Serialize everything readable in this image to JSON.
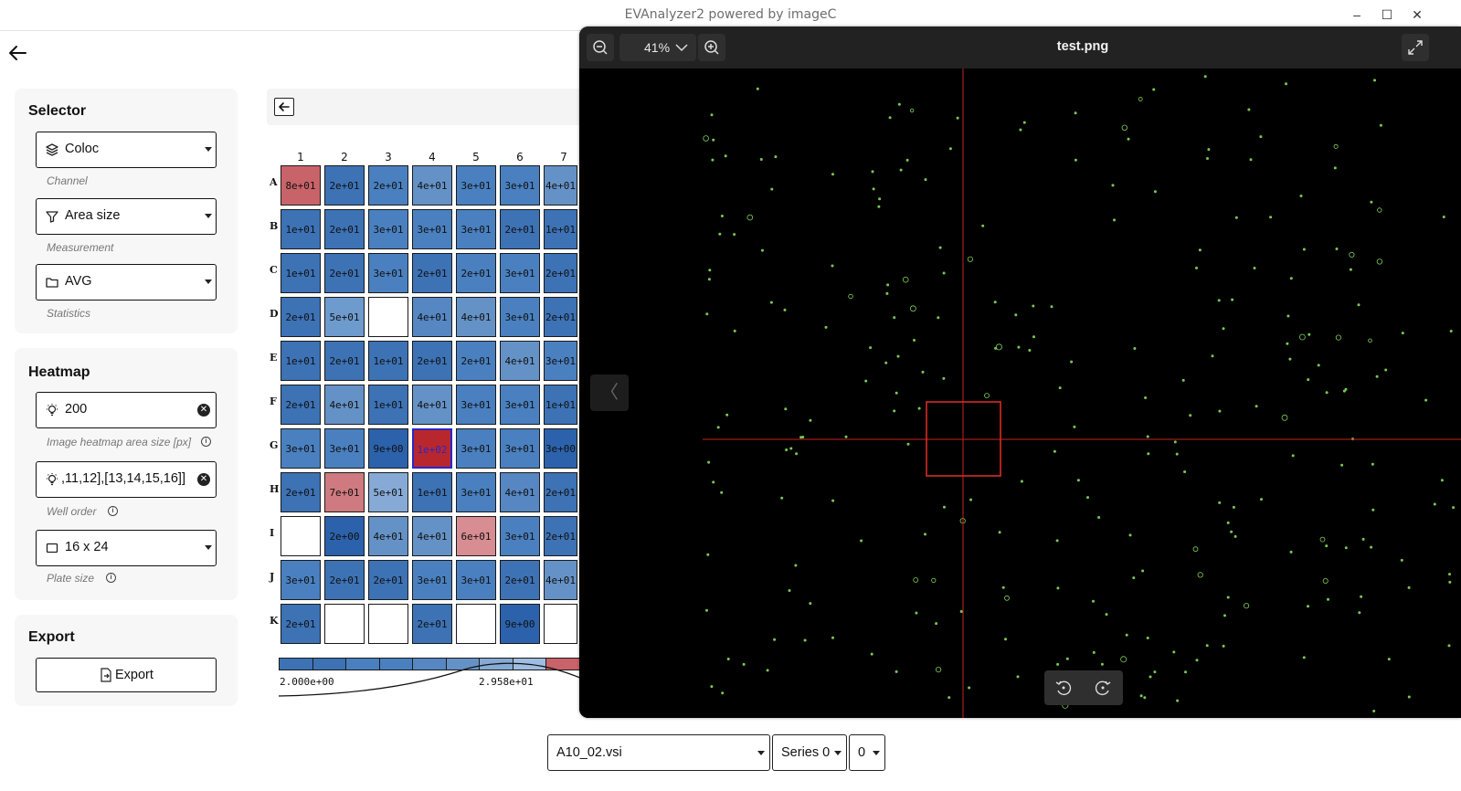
{
  "window": {
    "title": "EVAnalyzer2 powered by imageC",
    "minimize": "–",
    "maximize": "☐",
    "close": "✕"
  },
  "selector": {
    "title": "Selector",
    "channel": {
      "value": "Coloc",
      "hint": "Channel",
      "icon": "layers-icon"
    },
    "measurement": {
      "value": "Area size",
      "hint": "Measurement",
      "icon": "filter-icon"
    },
    "statistics": {
      "value": "AVG",
      "hint": "Statistics",
      "icon": "folder-icon"
    }
  },
  "heatmap": {
    "title": "Heatmap",
    "area_size": {
      "value": "200",
      "hint": "Image heatmap area size [px]",
      "icon": "lightbulb-icon"
    },
    "well_order": {
      "value": ",11,12],[13,14,15,16]]",
      "hint": "Well order",
      "icon": "lightbulb-icon"
    },
    "plate_size": {
      "value": "16 x 24",
      "hint": "Plate size",
      "icon": "square-icon"
    }
  },
  "export": {
    "title": "Export",
    "button_label": "Export"
  },
  "plate": {
    "columns": [
      "1",
      "2",
      "3",
      "4",
      "5",
      "6",
      "7"
    ],
    "rows": [
      {
        "label": "A",
        "cells": [
          "8e+01",
          "2e+01",
          "2e+01",
          "4e+01",
          "3e+01",
          "3e+01",
          "4e+01"
        ]
      },
      {
        "label": "B",
        "cells": [
          "1e+01",
          "2e+01",
          "3e+01",
          "3e+01",
          "3e+01",
          "2e+01",
          "1e+01"
        ]
      },
      {
        "label": "C",
        "cells": [
          "1e+01",
          "2e+01",
          "3e+01",
          "2e+01",
          "2e+01",
          "3e+01",
          "2e+01"
        ]
      },
      {
        "label": "D",
        "cells": [
          "2e+01",
          "5e+01",
          "",
          "4e+01",
          "4e+01",
          "3e+01",
          "2e+01"
        ]
      },
      {
        "label": "E",
        "cells": [
          "1e+01",
          "2e+01",
          "1e+01",
          "2e+01",
          "2e+01",
          "4e+01",
          "3e+01"
        ]
      },
      {
        "label": "F",
        "cells": [
          "2e+01",
          "4e+01",
          "1e+01",
          "4e+01",
          "3e+01",
          "3e+01",
          "1e+01"
        ]
      },
      {
        "label": "G",
        "cells": [
          "3e+01",
          "3e+01",
          "9e+00",
          "1e+02",
          "3e+01",
          "3e+01",
          "3e+00"
        ]
      },
      {
        "label": "H",
        "cells": [
          "2e+01",
          "7e+01",
          "5e+01",
          "1e+01",
          "3e+01",
          "4e+01",
          "2e+01"
        ]
      },
      {
        "label": "I",
        "cells": [
          "",
          "2e+00",
          "4e+01",
          "4e+01",
          "6e+01",
          "3e+01",
          "2e+01"
        ]
      },
      {
        "label": "J",
        "cells": [
          "3e+01",
          "2e+01",
          "2e+01",
          "3e+01",
          "3e+01",
          "2e+01",
          "4e+01"
        ]
      },
      {
        "label": "K",
        "cells": [
          "2e+01",
          "",
          "",
          "2e+01",
          "",
          "9e+00",
          ""
        ]
      }
    ],
    "colors": [
      [
        "#c9636a",
        "#3d72b5",
        "#4a80bf",
        "#6592c6",
        "#4a80bf",
        "#4a80bf",
        "#6592c6"
      ],
      [
        "#3d72b5",
        "#3d72b5",
        "#4a80bf",
        "#4a80bf",
        "#4a80bf",
        "#3d72b5",
        "#3d72b5"
      ],
      [
        "#3d72b5",
        "#3d72b5",
        "#4a80bf",
        "#3d72b5",
        "#4a80bf",
        "#4a80bf",
        "#3d72b5"
      ],
      [
        "#3d72b5",
        "#6e9bcd",
        "#ffffff",
        "#5687c3",
        "#6592c6",
        "#4a80bf",
        "#3d72b5"
      ],
      [
        "#3d72b5",
        "#3d72b5",
        "#3d72b5",
        "#3d72b5",
        "#4a80bf",
        "#6592c6",
        "#4a80bf"
      ],
      [
        "#3d72b5",
        "#6592c6",
        "#3d72b5",
        "#6592c6",
        "#4a80bf",
        "#4a80bf",
        "#3d72b5"
      ],
      [
        "#4a80bf",
        "#4a80bf",
        "#2c62ab",
        "#b8272d",
        "#4a80bf",
        "#4a80bf",
        "#2c62ab"
      ],
      [
        "#3d72b5",
        "#cf7a80",
        "#86aad5",
        "#3d72b5",
        "#4a80bf",
        "#5687c3",
        "#3d72b5"
      ],
      [
        "#ffffff",
        "#2c62ab",
        "#6592c6",
        "#6592c6",
        "#d88d92",
        "#4a80bf",
        "#3d72b5"
      ],
      [
        "#4a80bf",
        "#3d72b5",
        "#3d72b5",
        "#4a80bf",
        "#4a80bf",
        "#3d72b5",
        "#6592c6"
      ],
      [
        "#3d72b5",
        "#ffffff",
        "#ffffff",
        "#3d72b5",
        "#ffffff",
        "#2c62ab",
        "#ffffff"
      ]
    ],
    "selected": {
      "row": "G",
      "col": "4"
    },
    "legend": {
      "min_label": "2.000e+00",
      "mid_label": "2.958e+01",
      "colors": [
        "#3d72b5",
        "#3d72b5",
        "#4a80bf",
        "#4a80bf",
        "#5687c3",
        "#6592c6",
        "#86aad5",
        "#9fbde0",
        "#c9636a",
        "#c9636a"
      ]
    }
  },
  "viewer": {
    "filename": "test.png",
    "zoom": "41%",
    "prev_label": "〈"
  },
  "bottom_bar": {
    "file": "A10_02.vsi",
    "series": "Series 0",
    "index": "0"
  }
}
